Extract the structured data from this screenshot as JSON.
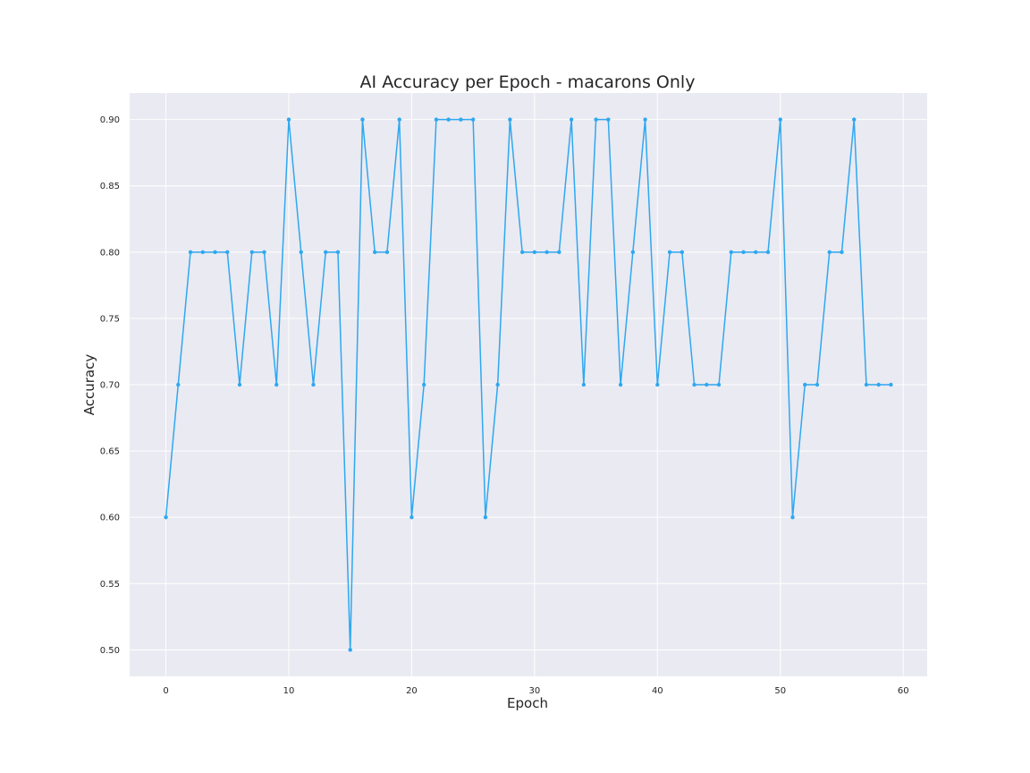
{
  "chart_data": {
    "type": "line",
    "title": "AI Accuracy per Epoch - macarons Only",
    "xlabel": "Epoch",
    "ylabel": "Accuracy",
    "xlim": [
      -2.95,
      61.95
    ],
    "ylim": [
      0.48,
      0.92
    ],
    "xticks": [
      0,
      10,
      20,
      30,
      40,
      50,
      60
    ],
    "yticks": [
      0.5,
      0.55,
      0.6,
      0.65,
      0.7,
      0.75,
      0.8,
      0.85,
      0.9
    ],
    "xtick_labels": [
      "0",
      "10",
      "20",
      "30",
      "40",
      "50",
      "60"
    ],
    "ytick_labels": [
      "0.50",
      "0.55",
      "0.60",
      "0.65",
      "0.70",
      "0.75",
      "0.80",
      "0.85",
      "0.90"
    ],
    "grid": true,
    "legend": "none",
    "series": [
      {
        "color": "#2ea8f0",
        "marker": "point",
        "x": [
          0,
          1,
          2,
          3,
          4,
          5,
          6,
          7,
          8,
          9,
          10,
          11,
          12,
          13,
          14,
          15,
          16,
          17,
          18,
          19,
          20,
          21,
          22,
          23,
          24,
          25,
          26,
          27,
          28,
          29,
          30,
          31,
          32,
          33,
          34,
          35,
          36,
          37,
          38,
          39,
          40,
          41,
          42,
          43,
          44,
          45,
          46,
          47,
          48,
          49,
          50,
          51,
          52,
          53,
          54,
          55,
          56,
          57,
          58,
          59
        ],
        "values": [
          0.6,
          0.7,
          0.8,
          0.8,
          0.8,
          0.8,
          0.7,
          0.8,
          0.8,
          0.7,
          0.9,
          0.8,
          0.7,
          0.8,
          0.8,
          0.5,
          0.9,
          0.8,
          0.8,
          0.9,
          0.6,
          0.7,
          0.9,
          0.9,
          0.9,
          0.9,
          0.6,
          0.7,
          0.9,
          0.8,
          0.8,
          0.8,
          0.8,
          0.9,
          0.7,
          0.9,
          0.9,
          0.7,
          0.8,
          0.9,
          0.7,
          0.8,
          0.8,
          0.7,
          0.7,
          0.7,
          0.8,
          0.8,
          0.8,
          0.8,
          0.9,
          0.6,
          0.7,
          0.7,
          0.8,
          0.8,
          0.9,
          0.7,
          0.7,
          0.7
        ]
      }
    ]
  },
  "style": {
    "plot_background": "#eaeaf2",
    "grid_color": "#ffffff",
    "text_color": "#262626"
  }
}
